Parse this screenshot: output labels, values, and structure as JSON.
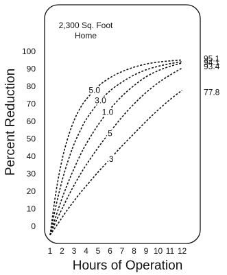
{
  "chart_data": {
    "type": "line",
    "title": "",
    "xlabel": "Hours of Operation",
    "ylabel": "Percent Reduction",
    "annotation_line1": "2,300 Sq. Foot",
    "annotation_line2": "Home",
    "x_ticks": [
      "1",
      "2",
      "3",
      "4",
      "5",
      "6",
      "7",
      "8",
      "9",
      "10",
      "11",
      "12"
    ],
    "y_ticks": [
      "0",
      "10",
      "20",
      "30",
      "40",
      "50",
      "60",
      "70",
      "80",
      "90",
      "100"
    ],
    "xlim": [
      1,
      12.8
    ],
    "ylim": [
      -5,
      100
    ],
    "grid": false,
    "series": [
      {
        "name": "5.0",
        "end_label": "95.1",
        "x": [
          1,
          1.5,
          2,
          2.5,
          3,
          3.5,
          4,
          5,
          6,
          7,
          8,
          9,
          10,
          11,
          12
        ],
        "y": [
          -5,
          20,
          38,
          51,
          60.5,
          67.5,
          72.5,
          80,
          85,
          88.5,
          91,
          92.8,
          93.9,
          94.6,
          95.1
        ]
      },
      {
        "name": "3.0",
        "end_label": "94.1",
        "x": [
          1,
          1.5,
          2,
          2.5,
          3,
          3.5,
          4,
          5,
          6,
          7,
          8,
          9,
          10,
          11,
          12
        ],
        "y": [
          -5,
          12,
          26,
          37.5,
          47,
          54.5,
          61,
          70.5,
          77.5,
          82.5,
          86.5,
          89.5,
          91.5,
          93,
          94.1
        ]
      },
      {
        "name": "1.0",
        "end_label": "93.4",
        "x": [
          1,
          1.5,
          2,
          2.5,
          3,
          3.5,
          4,
          5,
          6,
          7,
          8,
          9,
          10,
          11,
          12
        ],
        "y": [
          -5,
          6,
          16,
          25,
          33,
          40.5,
          47,
          58,
          67,
          74.5,
          80.5,
          85.5,
          89,
          91.5,
          93.4
        ]
      },
      {
        "name": ".5",
        "end_label": "",
        "x": [
          1,
          1.5,
          2,
          2.5,
          3,
          3.5,
          4,
          5,
          6,
          7,
          8,
          9,
          10,
          11,
          12
        ],
        "y": [
          -5,
          3,
          10,
          17,
          23.5,
          29.5,
          35,
          45,
          54,
          62.5,
          70,
          76.5,
          82,
          86.5,
          90.5
        ]
      },
      {
        "name": ".3",
        "end_label": "77.8",
        "x": [
          1,
          1.5,
          2,
          2.5,
          3,
          3.5,
          4,
          5,
          6,
          7,
          8,
          9,
          10,
          11,
          12
        ],
        "y": [
          -5,
          0,
          5,
          10,
          14.5,
          19,
          23,
          31,
          38.5,
          46,
          53,
          60,
          66.5,
          72.5,
          77.8
        ]
      }
    ]
  }
}
